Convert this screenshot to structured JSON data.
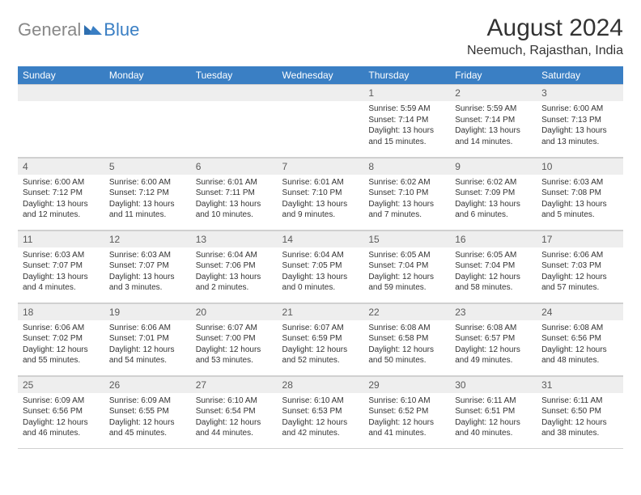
{
  "logo": {
    "gray": "General",
    "blue": "Blue"
  },
  "title": "August 2024",
  "location": "Neemuch, Rajasthan, India",
  "colors": {
    "header_bg": "#3a7fc4",
    "header_text": "#ffffff",
    "daynum_bg": "#eeeeee",
    "grid_border": "#d0d0d0",
    "body_text": "#333333",
    "logo_gray": "#888888",
    "logo_blue": "#3a7fc4",
    "page_bg": "#ffffff"
  },
  "typography": {
    "title_fontsize": 30,
    "location_fontsize": 16,
    "dow_fontsize": 12,
    "daynum_fontsize": 12,
    "body_fontsize": 10
  },
  "days_of_week": [
    "Sunday",
    "Monday",
    "Tuesday",
    "Wednesday",
    "Thursday",
    "Friday",
    "Saturday"
  ],
  "weeks": [
    [
      null,
      null,
      null,
      null,
      {
        "n": "1",
        "sr": "5:59 AM",
        "ss": "7:14 PM",
        "dl": "13 hours and 15 minutes."
      },
      {
        "n": "2",
        "sr": "5:59 AM",
        "ss": "7:14 PM",
        "dl": "13 hours and 14 minutes."
      },
      {
        "n": "3",
        "sr": "6:00 AM",
        "ss": "7:13 PM",
        "dl": "13 hours and 13 minutes."
      }
    ],
    [
      {
        "n": "4",
        "sr": "6:00 AM",
        "ss": "7:12 PM",
        "dl": "13 hours and 12 minutes."
      },
      {
        "n": "5",
        "sr": "6:00 AM",
        "ss": "7:12 PM",
        "dl": "13 hours and 11 minutes."
      },
      {
        "n": "6",
        "sr": "6:01 AM",
        "ss": "7:11 PM",
        "dl": "13 hours and 10 minutes."
      },
      {
        "n": "7",
        "sr": "6:01 AM",
        "ss": "7:10 PM",
        "dl": "13 hours and 9 minutes."
      },
      {
        "n": "8",
        "sr": "6:02 AM",
        "ss": "7:10 PM",
        "dl": "13 hours and 7 minutes."
      },
      {
        "n": "9",
        "sr": "6:02 AM",
        "ss": "7:09 PM",
        "dl": "13 hours and 6 minutes."
      },
      {
        "n": "10",
        "sr": "6:03 AM",
        "ss": "7:08 PM",
        "dl": "13 hours and 5 minutes."
      }
    ],
    [
      {
        "n": "11",
        "sr": "6:03 AM",
        "ss": "7:07 PM",
        "dl": "13 hours and 4 minutes."
      },
      {
        "n": "12",
        "sr": "6:03 AM",
        "ss": "7:07 PM",
        "dl": "13 hours and 3 minutes."
      },
      {
        "n": "13",
        "sr": "6:04 AM",
        "ss": "7:06 PM",
        "dl": "13 hours and 2 minutes."
      },
      {
        "n": "14",
        "sr": "6:04 AM",
        "ss": "7:05 PM",
        "dl": "13 hours and 0 minutes."
      },
      {
        "n": "15",
        "sr": "6:05 AM",
        "ss": "7:04 PM",
        "dl": "12 hours and 59 minutes."
      },
      {
        "n": "16",
        "sr": "6:05 AM",
        "ss": "7:04 PM",
        "dl": "12 hours and 58 minutes."
      },
      {
        "n": "17",
        "sr": "6:06 AM",
        "ss": "7:03 PM",
        "dl": "12 hours and 57 minutes."
      }
    ],
    [
      {
        "n": "18",
        "sr": "6:06 AM",
        "ss": "7:02 PM",
        "dl": "12 hours and 55 minutes."
      },
      {
        "n": "19",
        "sr": "6:06 AM",
        "ss": "7:01 PM",
        "dl": "12 hours and 54 minutes."
      },
      {
        "n": "20",
        "sr": "6:07 AM",
        "ss": "7:00 PM",
        "dl": "12 hours and 53 minutes."
      },
      {
        "n": "21",
        "sr": "6:07 AM",
        "ss": "6:59 PM",
        "dl": "12 hours and 52 minutes."
      },
      {
        "n": "22",
        "sr": "6:08 AM",
        "ss": "6:58 PM",
        "dl": "12 hours and 50 minutes."
      },
      {
        "n": "23",
        "sr": "6:08 AM",
        "ss": "6:57 PM",
        "dl": "12 hours and 49 minutes."
      },
      {
        "n": "24",
        "sr": "6:08 AM",
        "ss": "6:56 PM",
        "dl": "12 hours and 48 minutes."
      }
    ],
    [
      {
        "n": "25",
        "sr": "6:09 AM",
        "ss": "6:56 PM",
        "dl": "12 hours and 46 minutes."
      },
      {
        "n": "26",
        "sr": "6:09 AM",
        "ss": "6:55 PM",
        "dl": "12 hours and 45 minutes."
      },
      {
        "n": "27",
        "sr": "6:10 AM",
        "ss": "6:54 PM",
        "dl": "12 hours and 44 minutes."
      },
      {
        "n": "28",
        "sr": "6:10 AM",
        "ss": "6:53 PM",
        "dl": "12 hours and 42 minutes."
      },
      {
        "n": "29",
        "sr": "6:10 AM",
        "ss": "6:52 PM",
        "dl": "12 hours and 41 minutes."
      },
      {
        "n": "30",
        "sr": "6:11 AM",
        "ss": "6:51 PM",
        "dl": "12 hours and 40 minutes."
      },
      {
        "n": "31",
        "sr": "6:11 AM",
        "ss": "6:50 PM",
        "dl": "12 hours and 38 minutes."
      }
    ]
  ]
}
